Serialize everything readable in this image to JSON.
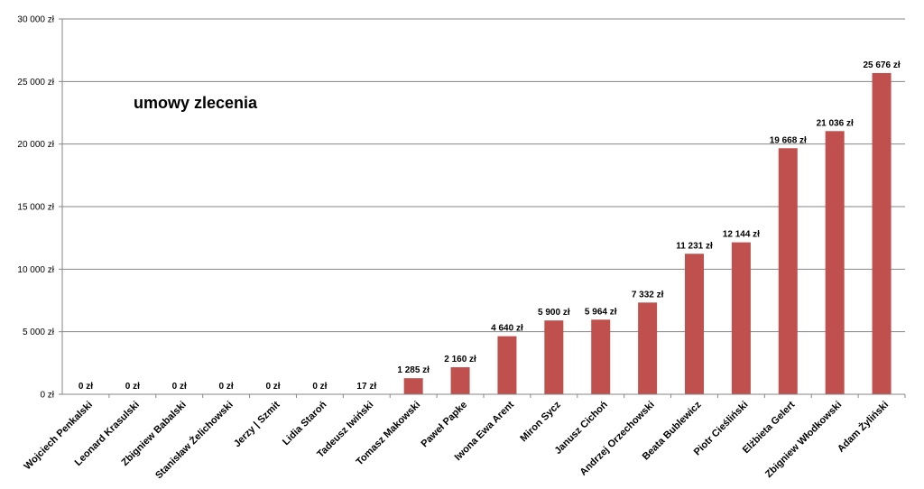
{
  "chart_data": {
    "type": "bar",
    "title": "umowy zlecenia",
    "xlabel": "",
    "ylabel": "",
    "ylim": [
      0,
      30000
    ],
    "yticks": [
      0,
      5000,
      10000,
      15000,
      20000,
      25000,
      30000
    ],
    "ytick_labels": [
      "0 zł",
      "5 000 zł",
      "10 000 zł",
      "15 000 zł",
      "20 000 zł",
      "25 000 zł",
      "30 000 zł"
    ],
    "grid": true,
    "legend": "none",
    "bar_color": "#c0504d",
    "categories": [
      "Wojciech Penkalski",
      "Leonard Krasulski",
      "Zbigniew Babalski",
      "Stanisław Żelichowski",
      "Jerzy  | Szmit",
      "Lidia Staroń",
      "Tadeusz Iwiński",
      "Tomasz Makowski",
      "Paweł Papke",
      "Iwona Ewa Arent",
      "Miron Sycz",
      "Janusz Cichoń",
      "Andrzej Orzechowski",
      "Beata Bublewicz",
      "Piotr Cieśliński",
      "Elżbieta Gelert",
      "Zbigniew Włodkowski",
      "Adam Żyliński"
    ],
    "values": [
      0,
      0,
      0,
      0,
      0,
      0,
      17,
      1285,
      2160,
      4640,
      5900,
      5964,
      7332,
      11231,
      12144,
      19668,
      21036,
      25676
    ],
    "value_labels": [
      "0 zł",
      "0 zł",
      "0 zł",
      "0 zł",
      "0 zł",
      "0 zł",
      "17 zł",
      "1 285 zł",
      "2 160 zł",
      "4 640 zł",
      "5 900 zł",
      "5 964 zł",
      "7 332 zł",
      "11 231 zł",
      "12 144 zł",
      "19 668 zł",
      "21 036 zł",
      "25 676 zł"
    ]
  }
}
